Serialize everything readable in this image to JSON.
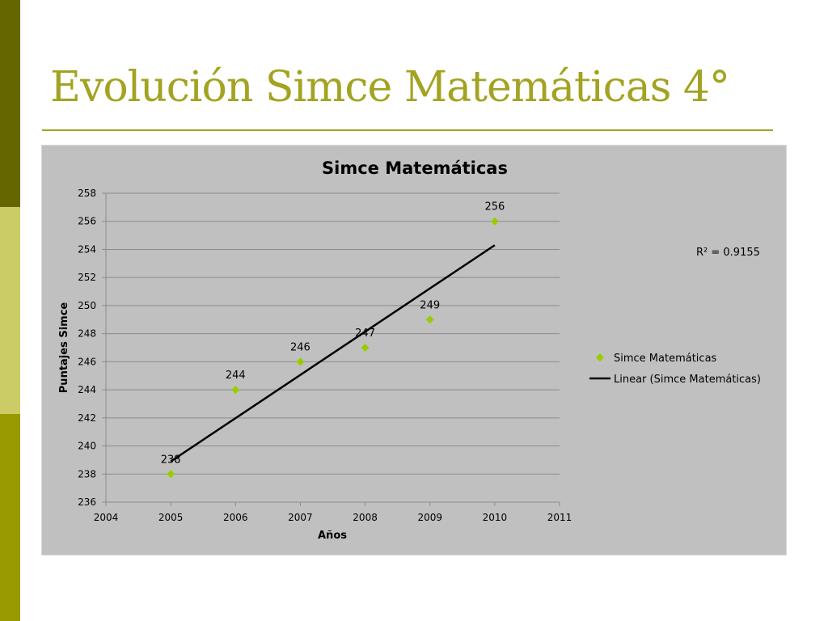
{
  "slide": {
    "title": "Evolución Simce Matemáticas 4°",
    "accent_color": "#a3a322",
    "sidebar_colors": [
      "#666600",
      "#cccc66",
      "#999900"
    ]
  },
  "chart_data": {
    "type": "scatter",
    "title": "Simce Matemáticas",
    "xlabel": "Años",
    "ylabel": "Puntajes Simce",
    "xlim": [
      2004,
      2011
    ],
    "ylim": [
      236,
      258
    ],
    "x_ticks": [
      2004,
      2005,
      2006,
      2007,
      2008,
      2009,
      2010,
      2011
    ],
    "y_ticks": [
      236,
      238,
      240,
      242,
      244,
      246,
      248,
      250,
      252,
      254,
      256,
      258
    ],
    "grid": true,
    "legend_position": "right",
    "series": [
      {
        "name": "Simce Matemáticas",
        "marker": "diamond",
        "color": "#99cc00",
        "x": [
          2005,
          2006,
          2007,
          2008,
          2009,
          2010
        ],
        "y": [
          238,
          244,
          246,
          247,
          249,
          256
        ],
        "data_labels": [
          "238",
          "244",
          "246",
          "247",
          "249",
          "256"
        ]
      }
    ],
    "trendline": {
      "name": "Linear (Simce Matemáticas)",
      "type": "linear",
      "color": "#000000",
      "x_range": [
        2005,
        2010
      ],
      "y_range": [
        238.9,
        254.3
      ],
      "r_squared_label": "R² = 0.9155"
    }
  }
}
